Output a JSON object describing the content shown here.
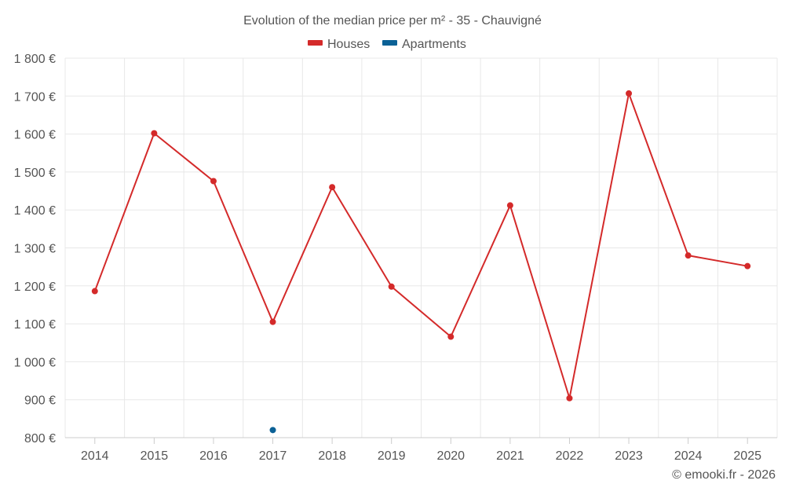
{
  "chart_data": {
    "type": "line",
    "title": "Evolution of the median price per m² - 35 - Chauvigné",
    "categories": [
      "2014",
      "2015",
      "2016",
      "2017",
      "2018",
      "2019",
      "2020",
      "2021",
      "2022",
      "2023",
      "2024",
      "2025"
    ],
    "series": [
      {
        "name": "Houses",
        "color": "#d42a2a",
        "values": [
          1186,
          1602,
          1476,
          1105,
          1460,
          1198,
          1066,
          1412,
          904,
          1707,
          1280,
          1252
        ]
      },
      {
        "name": "Apartments",
        "color": "#0b6196",
        "values": [
          null,
          null,
          null,
          820,
          null,
          null,
          null,
          null,
          null,
          null,
          null,
          null
        ]
      }
    ],
    "ylim": [
      800,
      1800
    ],
    "yticks": [
      800,
      900,
      1000,
      1100,
      1200,
      1300,
      1400,
      1500,
      1600,
      1700,
      1800
    ],
    "ytick_labels": [
      "800 €",
      "900 €",
      "1 000 €",
      "1 100 €",
      "1 200 €",
      "1 300 €",
      "1 400 €",
      "1 500 €",
      "1 600 €",
      "1 700 €",
      "1 800 €"
    ],
    "xlabel": "",
    "ylabel": "",
    "grid": true,
    "legend_position": "top-center"
  },
  "credit": "© emooki.fr - 2026"
}
